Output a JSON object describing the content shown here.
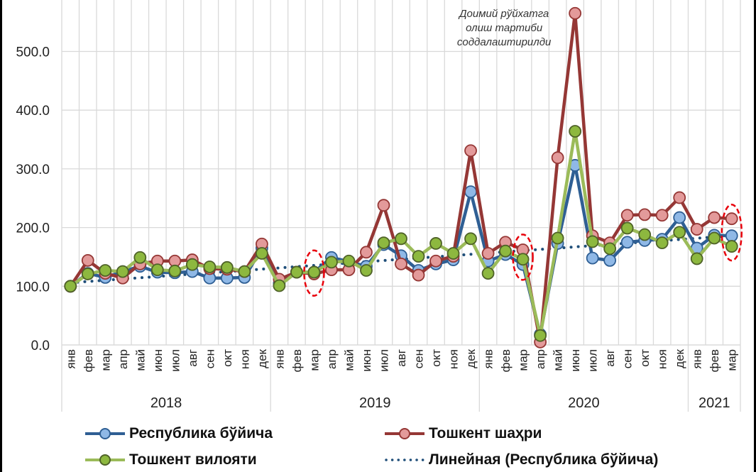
{
  "chart_data": {
    "type": "line",
    "title": "",
    "xlabel": "",
    "ylabel": "",
    "ylim": [
      0,
      565
    ],
    "yticks": [
      "0.0",
      "100.0",
      "200.0",
      "300.0",
      "400.0",
      "500.0"
    ],
    "ytick_values": [
      0,
      100,
      200,
      300,
      400,
      500
    ],
    "grid": true,
    "legend_position": "bottom",
    "categories": [
      "янв",
      "фев",
      "мар",
      "апр",
      "май",
      "июн",
      "июл",
      "авг",
      "сен",
      "окт",
      "ноя",
      "дек",
      "янв",
      "фев",
      "мар",
      "апр",
      "май",
      "июн",
      "июл",
      "авг",
      "сен",
      "окт",
      "ноя",
      "дек",
      "янв",
      "фев",
      "мар",
      "апр",
      "май",
      "июн",
      "июл",
      "авг",
      "сен",
      "окт",
      "ноя",
      "дек",
      "янв",
      "фев",
      "мар"
    ],
    "year_groups": [
      {
        "label": "2018",
        "count": 12
      },
      {
        "label": "2019",
        "count": 12
      },
      {
        "label": "2020",
        "count": 12
      },
      {
        "label": "2021",
        "count": 3
      }
    ],
    "series": [
      {
        "name": "Республика бўйича",
        "key": "republic",
        "line_color": "#2f5f94",
        "marker_fill": "#8fb8e6",
        "marker_stroke": "#2f5f94",
        "values": [
          100,
          122,
          115,
          125,
          134,
          124,
          123,
          125,
          114,
          114,
          115,
          165,
          105,
          124,
          124,
          149,
          142,
          134,
          171,
          152,
          127,
          138,
          145,
          261,
          143,
          154,
          137,
          18,
          173,
          306,
          148,
          144,
          175,
          178,
          180,
          217,
          165,
          187,
          186
        ]
      },
      {
        "name": "Тошкент шаҳри",
        "key": "city",
        "line_color": "#953735",
        "marker_fill": "#e39a9a",
        "marker_stroke": "#953735",
        "values": [
          100,
          144,
          122,
          114,
          138,
          143,
          143,
          145,
          130,
          129,
          125,
          172,
          112,
          124,
          121,
          128,
          128,
          158,
          238,
          138,
          119,
          143,
          151,
          331,
          156,
          175,
          162,
          5,
          319,
          565,
          186,
          174,
          221,
          222,
          221,
          251,
          197,
          217,
          215
        ]
      },
      {
        "name": "Тошкент вилояти",
        "key": "region",
        "line_color": "#9bbb59",
        "marker_fill": "#8db83f",
        "marker_stroke": "#4f6228",
        "values": [
          100,
          121,
          127,
          125,
          149,
          128,
          126,
          137,
          133,
          132,
          125,
          156,
          101,
          124,
          124,
          141,
          143,
          127,
          174,
          181,
          151,
          173,
          156,
          181,
          122,
          160,
          146,
          16,
          182,
          364,
          176,
          164,
          199,
          188,
          174,
          192,
          147,
          182,
          168
        ]
      }
    ],
    "trendline": {
      "name": "Линейная (Республика бўйича)",
      "of_series": "Республика бўйича",
      "color": "#1f4e79",
      "start_value": 106,
      "end_value": 186
    },
    "annotation": {
      "lines": [
        "Доимий рўйхатга",
        "олиш тартиби",
        "соддалаштирилди"
      ],
      "category_index": 29
    },
    "highlighted_points": [
      14,
      26,
      38
    ],
    "highlight_color": "#e8000b"
  },
  "legend": {
    "items": [
      {
        "label": "Республика бўйича"
      },
      {
        "label": "Тошкент шаҳри"
      },
      {
        "label": "Тошкент вилояти"
      },
      {
        "label": "Линейная (Республика бўйича)"
      }
    ]
  }
}
